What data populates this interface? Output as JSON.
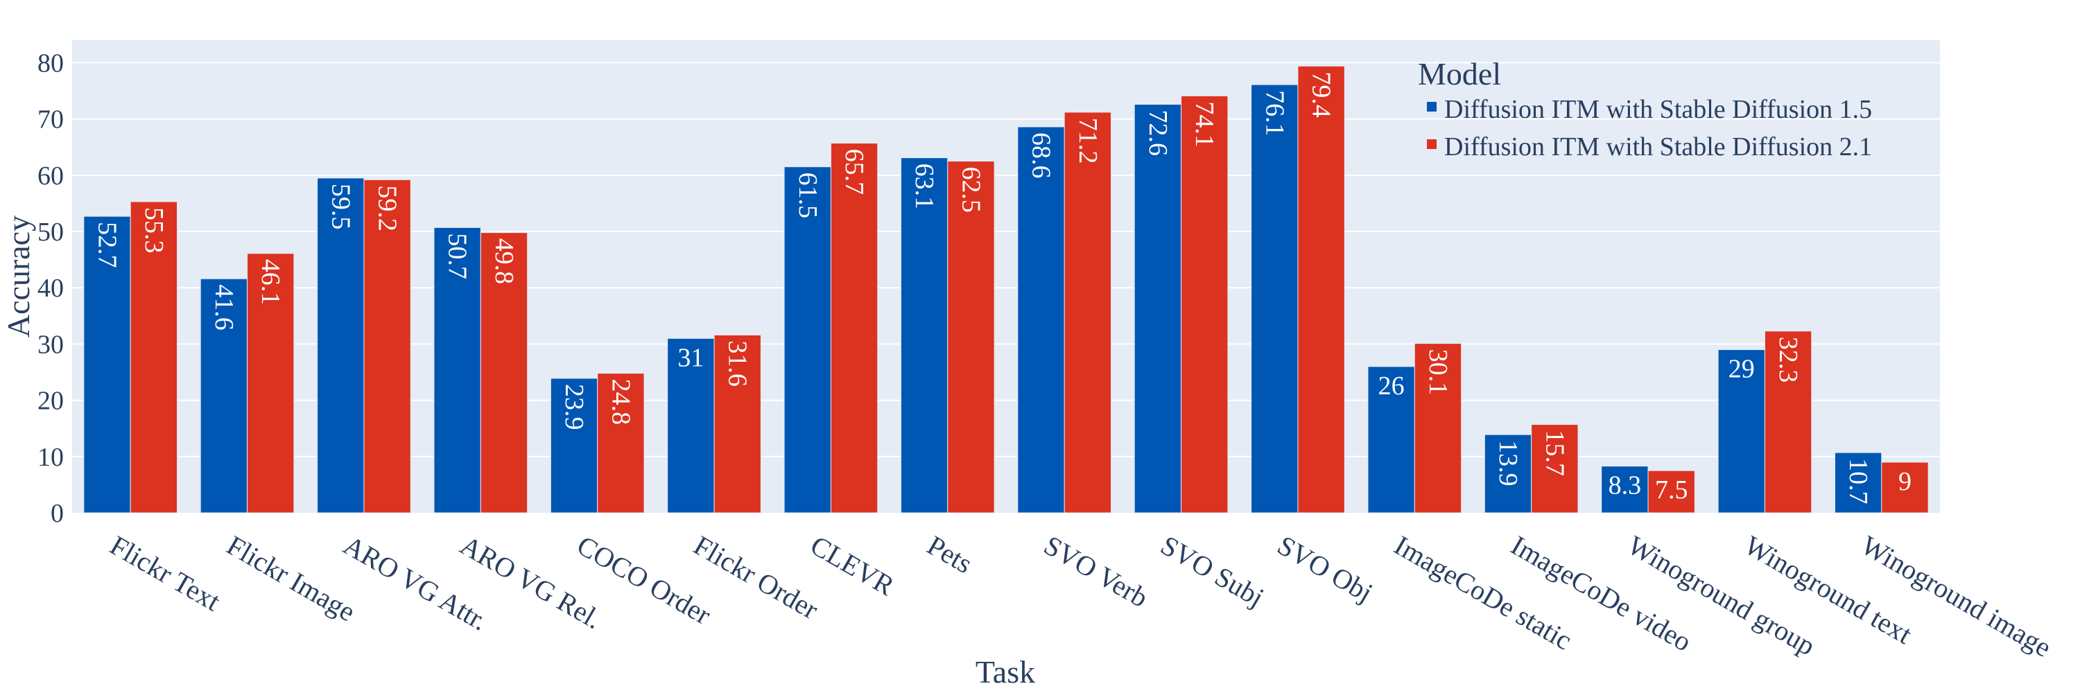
{
  "chart_data": {
    "type": "bar",
    "xlabel": "Task",
    "ylabel": "Accuracy",
    "ylim": [
      0,
      84
    ],
    "yticks": [
      0,
      10,
      20,
      30,
      40,
      50,
      60,
      70,
      80
    ],
    "grid": true,
    "legend": {
      "title": "Model",
      "placement": "top-right"
    },
    "categories": [
      "Flickr Text",
      "Flickr Image",
      "ARO VG Attr.",
      "ARO VG Rel.",
      "COCO Order",
      "Flickr Order",
      "CLEVR",
      "Pets",
      "SVO Verb",
      "SVO Subj",
      "SVO Obj",
      "ImageCoDe static",
      "ImageCoDe video",
      "Winoground group",
      "Winoground text",
      "Winoground image"
    ],
    "series": [
      {
        "name": "Diffusion ITM with Stable Diffusion 1.5",
        "color": "#0056b3",
        "values": [
          52.7,
          41.6,
          59.5,
          50.7,
          23.9,
          31,
          61.5,
          63.1,
          68.6,
          72.6,
          76.1,
          26,
          13.9,
          8.3,
          29,
          10.7
        ]
      },
      {
        "name": "Diffusion ITM with Stable Diffusion 2.1",
        "color": "#dc3220",
        "values": [
          55.3,
          46.1,
          59.2,
          49.8,
          24.8,
          31.6,
          65.7,
          62.5,
          71.2,
          74.1,
          79.4,
          30.1,
          15.7,
          7.5,
          32.3,
          9
        ]
      }
    ]
  }
}
